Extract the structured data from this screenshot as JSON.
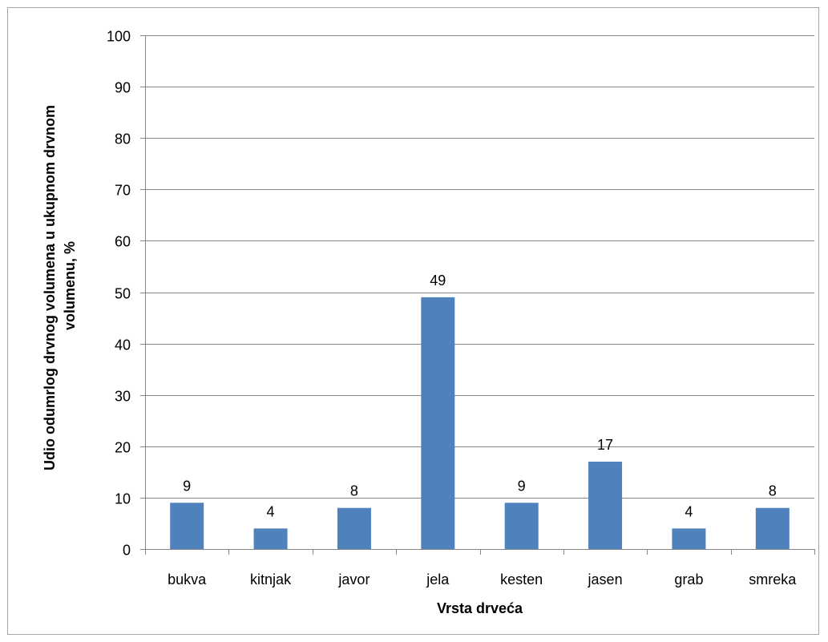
{
  "chart_data": {
    "type": "bar",
    "categories": [
      "bukva",
      "kitnjak",
      "javor",
      "jela",
      "kesten",
      "jasen",
      "grab",
      "smreka"
    ],
    "values": [
      9,
      4,
      8,
      49,
      9,
      17,
      4,
      8
    ],
    "data_labels": [
      "9",
      "4",
      "8",
      "49",
      "9",
      "17",
      "4",
      "8"
    ],
    "title": "",
    "xlabel": "Vrsta drveća",
    "ylabel_lines": [
      "Udio odumrlog drvnog volumena u ukupnom drvnom",
      "volumenu, %"
    ],
    "ylim": [
      0,
      100
    ],
    "yticks": [
      0,
      10,
      20,
      30,
      40,
      50,
      60,
      70,
      80,
      90,
      100
    ],
    "grid": true,
    "legend": "none",
    "bar_color": "#4f81bd",
    "grid_color": "#868686",
    "axis_color": "#868686"
  }
}
